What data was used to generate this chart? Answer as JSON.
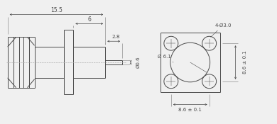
{
  "bg_color": "#f0f0f0",
  "line_color": "#4a4a4a",
  "dim_color": "#4a4a4a",
  "lw": 0.7,
  "thin_lw": 0.4,
  "left_view": {
    "note_15_5": "15.5",
    "note_6": "6",
    "note_2_8": "2.8",
    "note_d0_6": "Ø0.6"
  },
  "right_view": {
    "note_4holes": "4-Ø3.0",
    "note_d6_1": "Ø 6.1",
    "note_8_6_h": "8.6 ± 0.1",
    "note_8_6_v": "8.6 ± 0.1"
  }
}
